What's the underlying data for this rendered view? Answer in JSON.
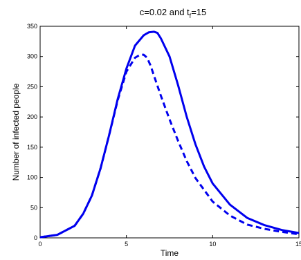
{
  "chart_data": {
    "type": "line",
    "title": {
      "prefix": "c=0.02 and t",
      "subscript": "f",
      "suffix": "=15"
    },
    "xlabel": "Time",
    "ylabel": "Number of infected people",
    "xlim": [
      0,
      15
    ],
    "ylim": [
      0,
      350
    ],
    "xticks": [
      0,
      5,
      10,
      15
    ],
    "yticks": [
      0,
      50,
      100,
      150,
      200,
      250,
      300,
      350
    ],
    "grid": false,
    "legend": "none",
    "color": "#0000ee",
    "series": [
      {
        "style": "solid",
        "x": [
          0,
          1,
          2,
          2.5,
          3,
          3.5,
          4,
          4.5,
          5,
          5.5,
          6,
          6.3,
          6.6,
          6.8,
          7,
          7.5,
          8,
          8.5,
          9,
          9.5,
          10,
          11,
          12,
          13,
          14,
          15
        ],
        "y": [
          1,
          5,
          20,
          40,
          70,
          115,
          170,
          230,
          280,
          318,
          335,
          340,
          341,
          339,
          330,
          300,
          252,
          200,
          155,
          118,
          90,
          55,
          33,
          21,
          13,
          8
        ]
      },
      {
        "style": "dashed",
        "x": [
          0,
          1,
          2,
          2.5,
          3,
          3.5,
          4,
          4.5,
          5,
          5.5,
          5.8,
          6,
          6.2,
          6.4,
          6.6,
          7,
          7.5,
          8,
          8.5,
          9,
          10,
          11,
          12,
          13,
          14,
          15
        ],
        "y": [
          1,
          5,
          20,
          40,
          70,
          115,
          170,
          228,
          275,
          298,
          303,
          303,
          298,
          285,
          268,
          235,
          196,
          160,
          127,
          99,
          60,
          37,
          22,
          15,
          10,
          6
        ]
      }
    ]
  }
}
